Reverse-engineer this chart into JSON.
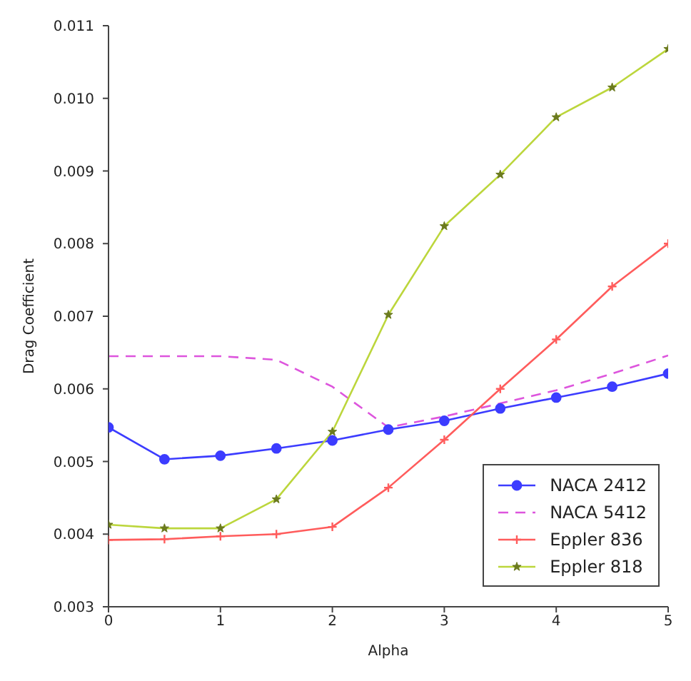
{
  "chart_data": {
    "type": "line",
    "xlabel": "Alpha",
    "ylabel": "Drag Coefficient",
    "x": [
      0,
      0.5,
      1,
      1.5,
      2,
      2.5,
      3,
      3.5,
      4,
      4.5,
      5
    ],
    "xlim": [
      0,
      5
    ],
    "xticks": [
      0,
      1,
      2,
      3,
      4,
      5
    ],
    "ylim": [
      0.003,
      0.011
    ],
    "yticks": [
      0.003,
      0.004,
      0.005,
      0.006,
      0.007,
      0.008,
      0.009,
      {
        "value": 0.01,
        "label": "0.010"
      },
      0.011
    ],
    "grid": false,
    "legend": "bottom right",
    "series": [
      {
        "name": "NACA 2412",
        "color": "#3c3cff",
        "marker": "circle",
        "line_style": "solid",
        "values": [
          0.00547,
          0.00503,
          0.00508,
          0.00518,
          0.00529,
          0.00544,
          0.00556,
          0.00573,
          0.00588,
          0.00603,
          0.00621
        ]
      },
      {
        "name": "NACA 5412",
        "color": "#dd55dd",
        "marker": "none",
        "line_style": "dashed",
        "values": [
          0.00645,
          0.00645,
          0.00645,
          0.0064,
          0.00603,
          0.00547,
          0.00562,
          0.0058,
          0.00598,
          0.00621,
          0.00646
        ]
      },
      {
        "name": "Eppler 836",
        "color": "#ff5c5c",
        "marker": "cross",
        "line_style": "solid",
        "values": [
          0.00392,
          0.00393,
          0.00397,
          0.004,
          0.0041,
          0.00464,
          0.0053,
          0.006,
          0.00668,
          0.00741,
          0.008
        ]
      },
      {
        "name": "Eppler 818",
        "color": "#bcd63c",
        "marker": "star",
        "line_style": "solid",
        "values": [
          0.00413,
          0.00408,
          0.00408,
          0.00448,
          0.00541,
          0.00702,
          0.00824,
          0.00895,
          0.00974,
          0.01015,
          0.01068
        ]
      }
    ]
  }
}
